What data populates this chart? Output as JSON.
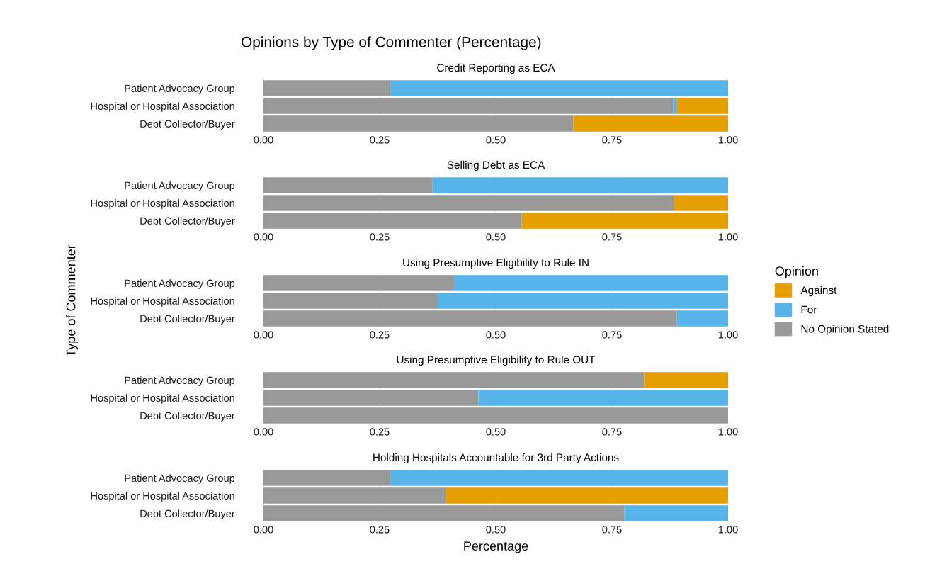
{
  "chart_data": [
    {
      "type": "bar",
      "orientation": "horizontal",
      "stacked": true,
      "title": "Opinions by Type of Commenter (Percentage)",
      "subtitle": "Credit Reporting as ECA",
      "categories": [
        "Patient Advocacy Group",
        "Hospital or Hospital Association",
        "Debt Collector/Buyer"
      ],
      "xlim": [
        0,
        1
      ],
      "xticks": [
        {
          "value": 0,
          "label": "0.00"
        },
        {
          "value": 0.25,
          "label": "0.25"
        },
        {
          "value": 0.5,
          "label": "0.50"
        },
        {
          "value": 0.75,
          "label": "0.75"
        },
        {
          "value": 1,
          "label": "1.00"
        }
      ],
      "grid": true,
      "series": [
        {
          "color": "#999999",
          "values": [
            0.273,
            0.882,
            0.667
          ]
        },
        {
          "color": "#56b4e9",
          "values": [
            0.727,
            0.008,
            0
          ]
        },
        {
          "color": "#e69f00",
          "values": [
            0,
            0.11,
            0.333
          ]
        }
      ]
    },
    {
      "type": "bar",
      "orientation": "horizontal",
      "stacked": true,
      "subtitle": "Selling Debt as ECA",
      "categories": [
        "Patient Advocacy Group",
        "Hospital or Hospital Association",
        "Debt Collector/Buyer"
      ],
      "xlim": [
        0,
        1
      ],
      "xticks": [
        {
          "value": 0,
          "label": "0.00"
        },
        {
          "value": 0.25,
          "label": "0.25"
        },
        {
          "value": 0.5,
          "label": "0.50"
        },
        {
          "value": 0.75,
          "label": "0.75"
        },
        {
          "value": 1,
          "label": "1.00"
        }
      ],
      "grid": true,
      "series": [
        {
          "color": "#999999",
          "values": [
            0.364,
            0.883,
            0.556
          ]
        },
        {
          "color": "#56b4e9",
          "values": [
            0.636,
            0,
            0
          ]
        },
        {
          "color": "#e69f00",
          "values": [
            0,
            0.117,
            0.444
          ]
        }
      ]
    },
    {
      "type": "bar",
      "orientation": "horizontal",
      "stacked": true,
      "subtitle": "Using Presumptive Eligibility to Rule IN",
      "categories": [
        "Patient Advocacy Group",
        "Hospital or Hospital Association",
        "Debt Collector/Buyer"
      ],
      "xlim": [
        0,
        1
      ],
      "xticks": [
        {
          "value": 0,
          "label": "0.00"
        },
        {
          "value": 0.25,
          "label": "0.25"
        },
        {
          "value": 0.5,
          "label": "0.50"
        },
        {
          "value": 0.75,
          "label": "0.75"
        },
        {
          "value": 1,
          "label": "1.00"
        }
      ],
      "grid": true,
      "legend": "right",
      "legend_title": "Opinion",
      "ylabel": "Type of Commenter",
      "series": [
        {
          "name": "No Opinion Stated",
          "color": "#999999",
          "values": [
            0.41,
            0.375,
            0.889
          ]
        },
        {
          "name": "For",
          "color": "#56b4e9",
          "values": [
            0.59,
            0.625,
            0.111
          ]
        },
        {
          "name": "Against",
          "color": "#e69f00",
          "values": [
            0,
            0,
            0
          ]
        }
      ]
    },
    {
      "type": "bar",
      "orientation": "horizontal",
      "stacked": true,
      "subtitle": "Using Presumptive Eligibility to Rule OUT",
      "categories": [
        "Patient Advocacy Group",
        "Hospital or Hospital Association",
        "Debt Collector/Buyer"
      ],
      "xlim": [
        0,
        1
      ],
      "xticks": [
        {
          "value": 0,
          "label": "0.00"
        },
        {
          "value": 0.25,
          "label": "0.25"
        },
        {
          "value": 0.5,
          "label": "0.50"
        },
        {
          "value": 0.75,
          "label": "0.75"
        },
        {
          "value": 1,
          "label": "1.00"
        }
      ],
      "grid": true,
      "series": [
        {
          "color": "#999999",
          "values": [
            0.819,
            0.463,
            1
          ]
        },
        {
          "color": "#56b4e9",
          "values": [
            0,
            0.537,
            0
          ]
        },
        {
          "color": "#e69f00",
          "values": [
            0.181,
            0,
            0
          ]
        }
      ]
    },
    {
      "type": "bar",
      "orientation": "horizontal",
      "stacked": true,
      "subtitle": "Holding Hospitals Accountable for 3rd Party Actions",
      "categories": [
        "Patient Advocacy Group",
        "Hospital or Hospital Association",
        "Debt Collector/Buyer"
      ],
      "xlim": [
        0,
        1
      ],
      "xticks": [
        {
          "value": 0,
          "label": "0.00"
        },
        {
          "value": 0.25,
          "label": "0.25"
        },
        {
          "value": 0.5,
          "label": "0.50"
        },
        {
          "value": 0.75,
          "label": "0.75"
        },
        {
          "value": 1,
          "label": "1.00"
        }
      ],
      "grid": true,
      "xlabel": "Percentage",
      "series": [
        {
          "color": "#999999",
          "values": [
            0.273,
            0.392,
            0.777
          ]
        },
        {
          "color": "#56b4e9",
          "values": [
            0.727,
            0,
            0.223
          ]
        },
        {
          "color": "#e69f00",
          "values": [
            0,
            0.608,
            0
          ]
        }
      ]
    }
  ]
}
